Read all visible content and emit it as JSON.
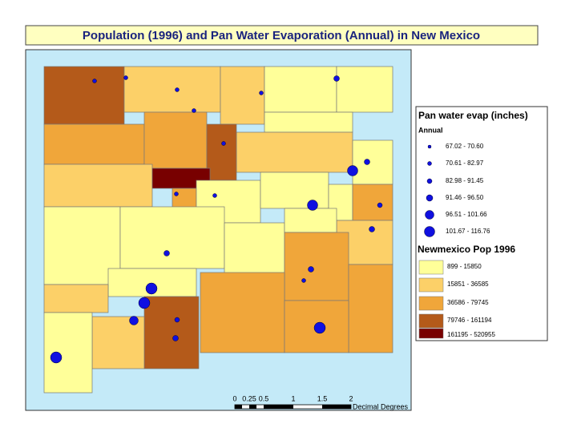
{
  "title": "Population (1996) and Pan Water Evaporation (Annual) in New Mexico",
  "legend_evap": {
    "title": "Pan water evap (inches)",
    "subtitle": "Annual",
    "classes": [
      "67.02 - 70.60",
      "70.61 - 82.97",
      "82.98 - 91.45",
      "91.46 - 96.50",
      "96.51 - 101.66",
      "101.67 - 116.76"
    ],
    "color": "#1010e0"
  },
  "legend_pop": {
    "title": "Newmexico Pop 1996",
    "classes": [
      {
        "label": "899 - 15850",
        "color": "#ffff99"
      },
      {
        "label": "15851 - 36585",
        "color": "#fcd068"
      },
      {
        "label": "36586 - 79745",
        "color": "#f0a63a"
      },
      {
        "label": "79746 - 161194",
        "color": "#b45a1a"
      },
      {
        "label": "161195 - 520955",
        "color": "#780000"
      }
    ]
  },
  "scale_bar": {
    "ticks": [
      "0",
      "0.25",
      "0.5",
      "1",
      "1.5",
      "2"
    ],
    "unit": "Decimal Degrees"
  }
}
